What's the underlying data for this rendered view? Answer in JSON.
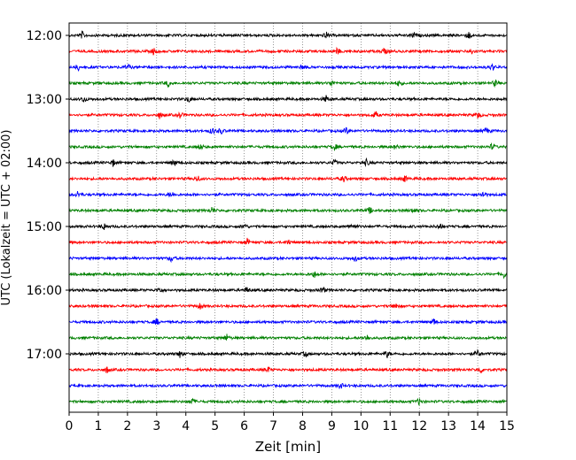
{
  "chart_data": {
    "type": "line",
    "title": "",
    "xlabel": "Zeit  [min]",
    "ylabel": "UTC (Lokalzeit = UTC + 02:00)",
    "xlim": [
      0,
      15
    ],
    "x_ticks": [
      0,
      1,
      2,
      3,
      4,
      5,
      6,
      7,
      8,
      9,
      10,
      11,
      12,
      13,
      14,
      15
    ],
    "y_tick_labels": [
      "12:00",
      "13:00",
      "14:00",
      "15:00",
      "16:00",
      "17:00"
    ],
    "grid": "vertical dotted lines at each minute",
    "trace_colors": [
      "#000000",
      "#ff0000",
      "#0000ff",
      "#008000"
    ],
    "traces": [
      {
        "start": "12:00",
        "events_min": [
          0.45,
          8.8,
          11.8,
          13.7
        ]
      },
      {
        "start": "12:15",
        "events_min": [
          2.9,
          9.2,
          10.8,
          13.8
        ]
      },
      {
        "start": "12:30",
        "events_min": [
          0.3,
          2.0,
          8.0,
          14.5
        ]
      },
      {
        "start": "12:45",
        "events_min": [
          3.4,
          9.0,
          11.3,
          14.6
        ]
      },
      {
        "start": "13:00",
        "events_min": [
          0.5,
          4.1,
          8.8
        ]
      },
      {
        "start": "13:15",
        "events_min": [
          3.1,
          3.8,
          10.5,
          14.0
        ]
      },
      {
        "start": "13:30",
        "events_min": [
          4.9,
          5.2,
          9.5,
          14.3
        ]
      },
      {
        "start": "13:45",
        "events_min": [
          4.5,
          9.1,
          11.2,
          14.5
        ]
      },
      {
        "start": "14:00",
        "events_min": [
          1.5,
          3.6,
          9.1,
          10.2
        ]
      },
      {
        "start": "14:15",
        "events_min": [
          4.4,
          9.4,
          11.5
        ]
      },
      {
        "start": "14:30",
        "events_min": [
          0.3,
          3.5,
          14.2
        ]
      },
      {
        "start": "14:45",
        "events_min": [
          4.9,
          10.3,
          11.8
        ]
      },
      {
        "start": "15:00",
        "events_min": [
          1.2,
          6.0,
          9.7,
          12.7
        ]
      },
      {
        "start": "15:15",
        "events_min": [
          6.1,
          7.5
        ]
      },
      {
        "start": "15:30",
        "events_min": [
          3.5,
          9.8
        ]
      },
      {
        "start": "15:45",
        "events_min": [
          8.4,
          14.9
        ]
      },
      {
        "start": "16:00",
        "events_min": [
          3.1,
          6.1,
          8.7
        ]
      },
      {
        "start": "16:15",
        "events_min": [
          4.5,
          11.2
        ]
      },
      {
        "start": "16:30",
        "events_min": [
          3.0,
          12.5
        ]
      },
      {
        "start": "16:45",
        "events_min": [
          5.4,
          10.2
        ]
      },
      {
        "start": "17:00",
        "events_min": [
          3.8,
          8.1,
          10.9,
          14.0
        ]
      },
      {
        "start": "17:15",
        "events_min": [
          1.3,
          6.8,
          14.1
        ]
      },
      {
        "start": "17:30",
        "events_min": [
          9.3
        ]
      },
      {
        "start": "17:45",
        "events_min": [
          4.2,
          12.0
        ]
      }
    ]
  }
}
